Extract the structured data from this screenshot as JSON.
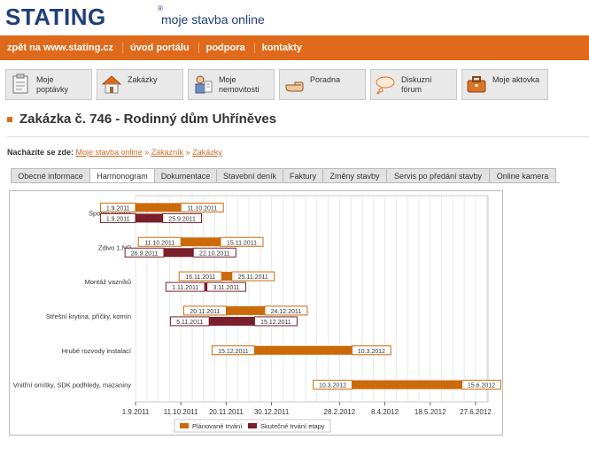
{
  "header": {
    "logo": "STATING",
    "logo_reg": "®",
    "tagline": "moje stavba online"
  },
  "topnav": [
    {
      "label": "zpět na www.stating.cz"
    },
    {
      "label": "úvod portálu"
    },
    {
      "label": "podpora"
    },
    {
      "label": "kontakty"
    }
  ],
  "iconbar": [
    {
      "label": "Moje poptávky",
      "icon": "clipboard-icon"
    },
    {
      "label": "Zakázky",
      "icon": "house-icon"
    },
    {
      "label": "Moje\nnemovitosti",
      "icon": "person-document-icon"
    },
    {
      "label": "Poradna",
      "icon": "pointing-hand-icon"
    },
    {
      "label": "Diskuzní fórum",
      "icon": "speech-cloud-icon"
    },
    {
      "label": "Moje aktovka",
      "icon": "briefcase-icon"
    }
  ],
  "page": {
    "title": "Zakázka č. 746 - Rodinný dům Uhříněves"
  },
  "breadcrumb": {
    "prefix": "Nacházíte se zde:",
    "items": [
      "Moje stavba online",
      "Zákazník",
      "Zakázky"
    ],
    "separator": "»"
  },
  "tabs": [
    {
      "label": "Obecné informace",
      "active": false
    },
    {
      "label": "Harmonogram",
      "active": true
    },
    {
      "label": "Dokumentace",
      "active": false
    },
    {
      "label": "Stavební deník",
      "active": false
    },
    {
      "label": "Faktury",
      "active": false
    },
    {
      "label": "Změny stavby",
      "active": false
    },
    {
      "label": "Servis po předání stavby",
      "active": false
    },
    {
      "label": "Online kamera",
      "active": false
    }
  ],
  "colors": {
    "brand": "#1f3f77",
    "nav_orange": "#e06a1b",
    "planned": "#cc6a0a",
    "actual": "#7a1f2b"
  },
  "chart_data": {
    "type": "gantt",
    "x_axis_ticks": [
      "1.9.2011",
      "11.10.2011",
      "20.11.2011",
      "30.12.2011",
      "28.2.2012",
      "8.4.2012",
      "18.5.2012",
      "27.6.2012"
    ],
    "xlim": [
      "1.9.2011",
      "8.7.2012"
    ],
    "grid": true,
    "legend": {
      "position": "bottom",
      "entries": [
        "Plánované trvání",
        "Skutečné trvání etapy"
      ]
    },
    "series": [
      {
        "name": "Plánované trvání",
        "color": "#cc6a0a"
      },
      {
        "name": "Skutečné trvání etapy",
        "color": "#7a1f2b"
      }
    ],
    "tasks": [
      {
        "name": "Spodní stavba",
        "planned": {
          "start": "1.9.2011",
          "end": "11.10.2011"
        },
        "actual": {
          "start": "1.9.2011",
          "end": "25.9.2011"
        }
      },
      {
        "name": "Zdivo 1.NP",
        "planned": {
          "start": "11.10.2011",
          "end": "15.11.2011"
        },
        "actual": {
          "start": "26.9.2011",
          "end": "22.10.2011"
        }
      },
      {
        "name": "Montáž vazníků",
        "planned": {
          "start": "16.11.2011",
          "end": "25.11.2011"
        },
        "actual": {
          "start": "1.11.2011",
          "end": "3.11.2011"
        }
      },
      {
        "name": "Střešní krytina, příčky, komín",
        "planned": {
          "start": "20.11.2011",
          "end": "24.12.2011"
        },
        "actual": {
          "start": "5.11.2011",
          "end": "15.12.2011"
        }
      },
      {
        "name": "Hrubé rozvody instalací",
        "planned": {
          "start": "15.12.2011",
          "end": "10.3.2012"
        },
        "actual": null
      },
      {
        "name": "Vnitřní omítky, SDK podhledy, mazaniny",
        "planned": {
          "start": "10.3.2012",
          "end": "15.6.2012"
        },
        "actual": null
      }
    ]
  }
}
